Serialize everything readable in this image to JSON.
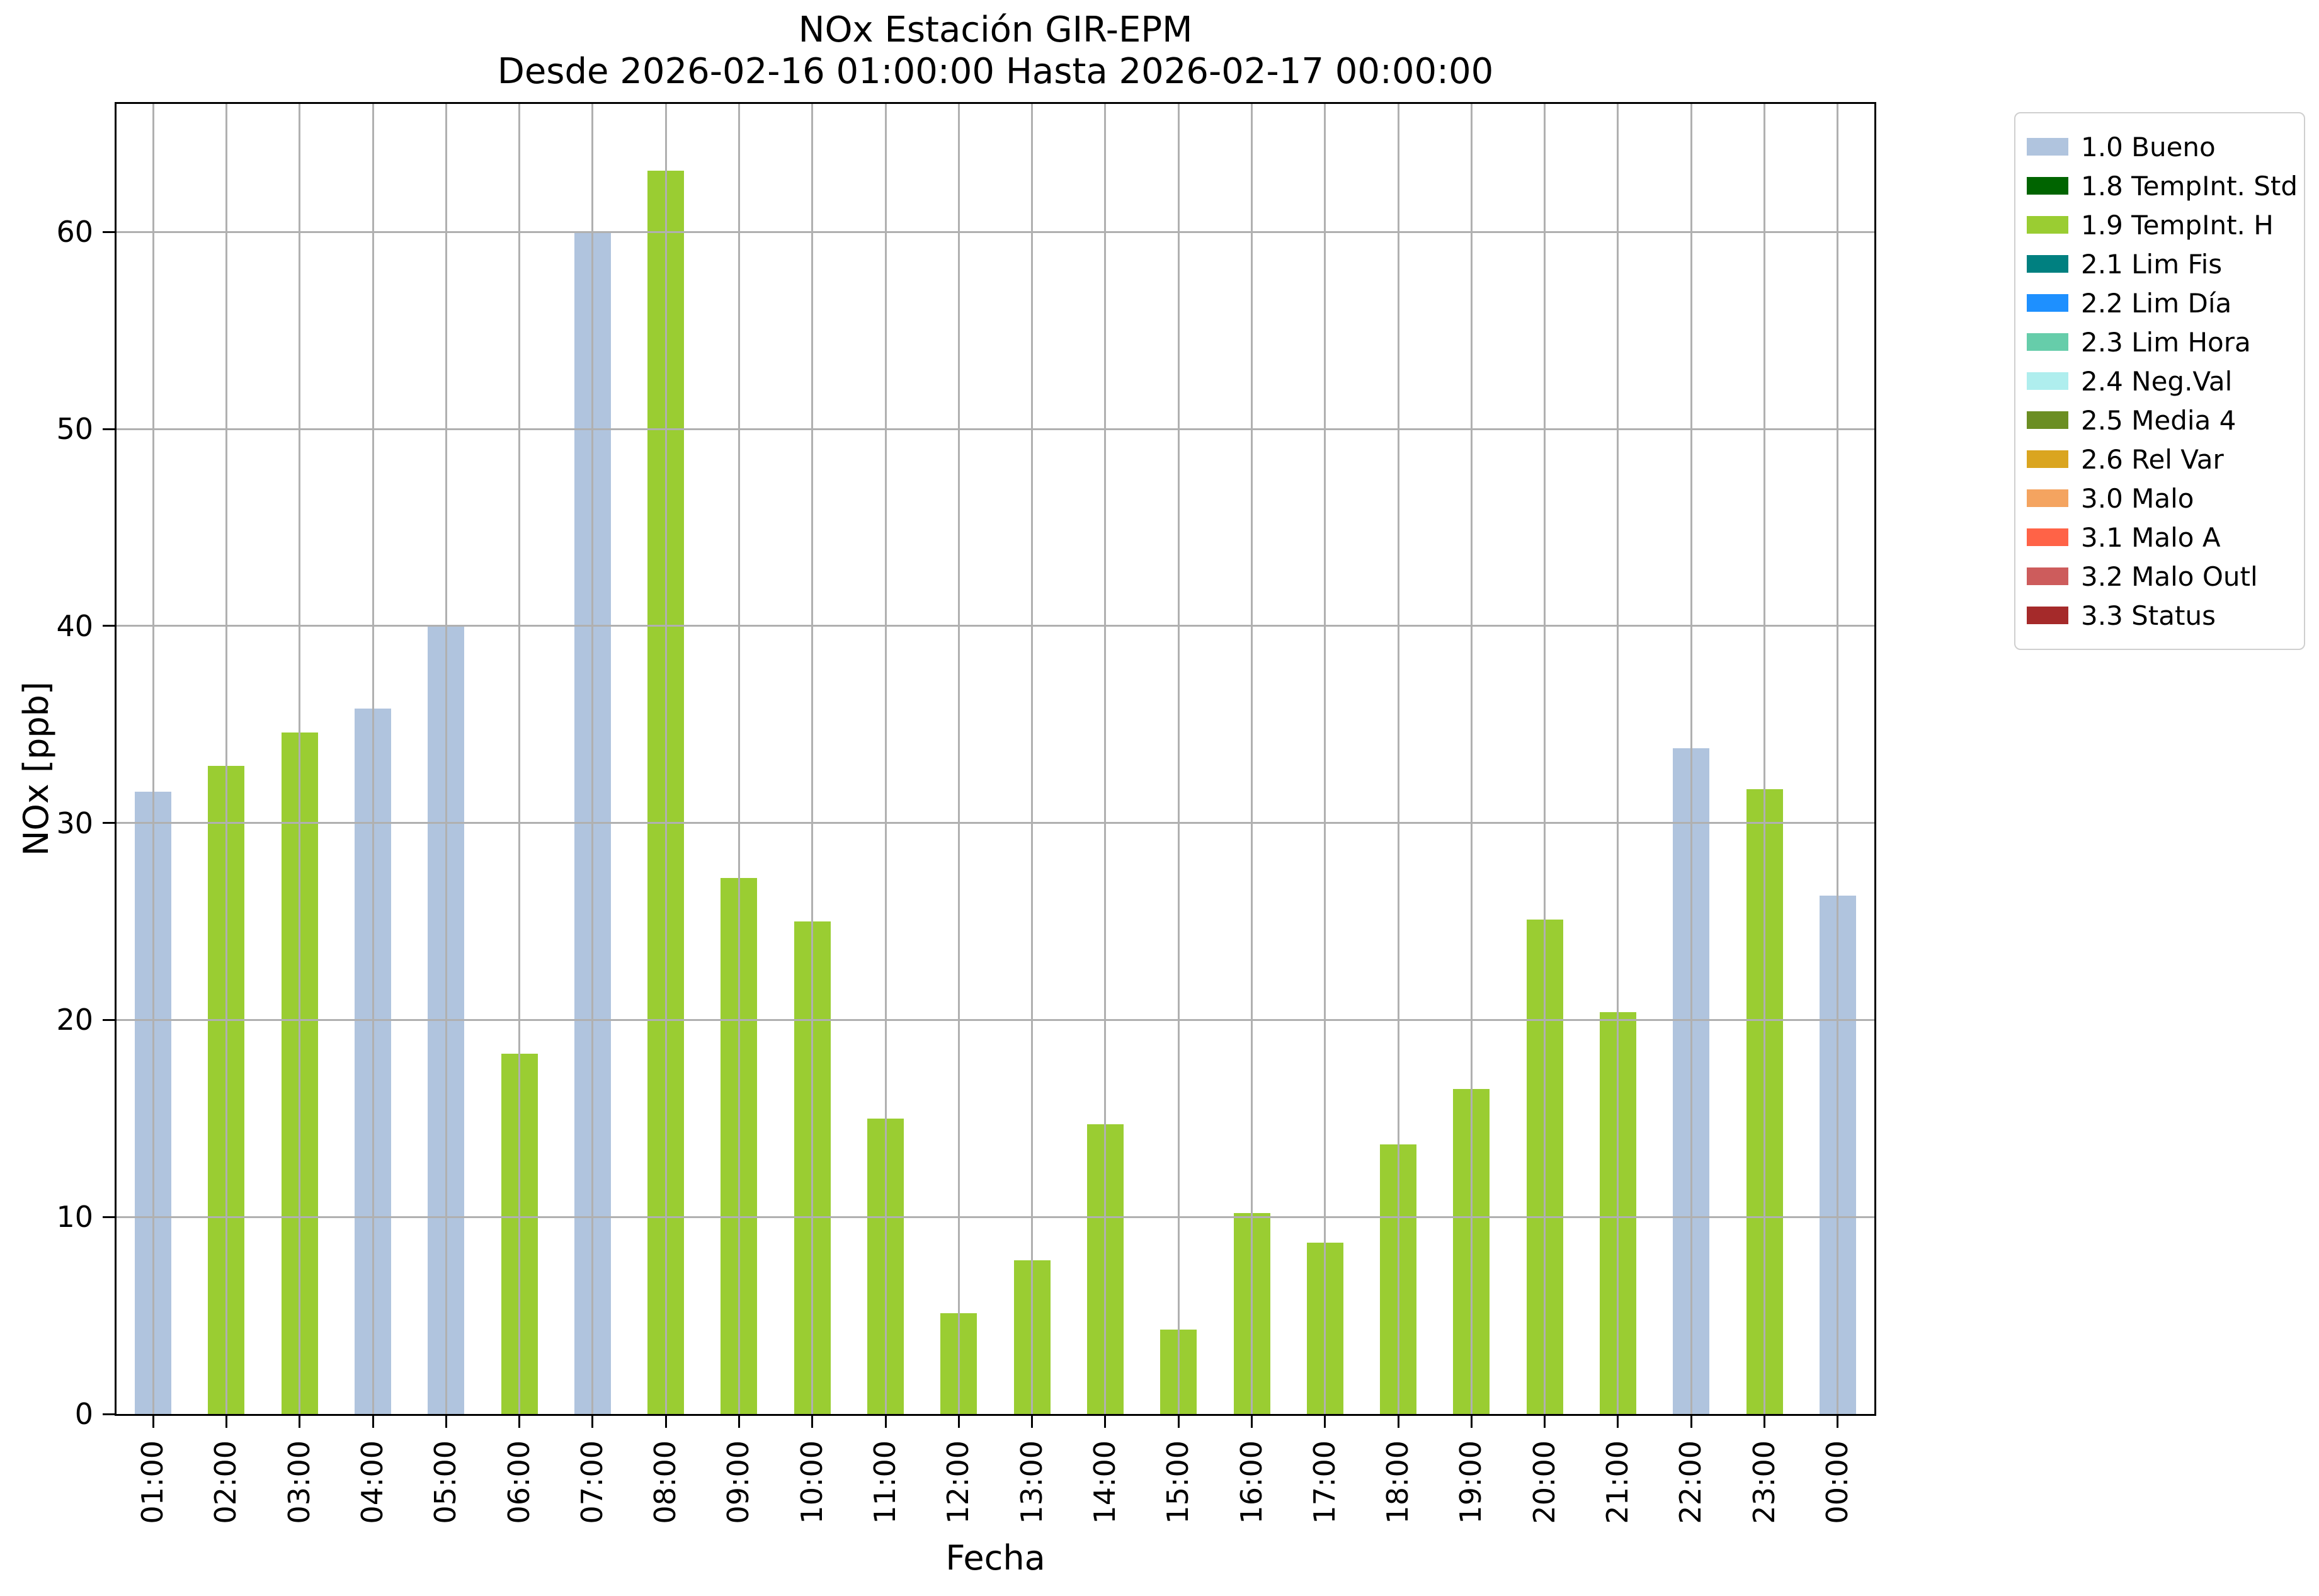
{
  "chart_data": {
    "type": "bar",
    "title": "NOx Estación GIR-EPM",
    "subtitle": "Desde 2026-02-16 01:00:00 Hasta 2026-02-17 00:00:00",
    "xlabel": "Fecha",
    "ylabel": "NOx [ppb]",
    "ylim": [
      0,
      66.5
    ],
    "yticks": [
      0,
      10,
      20,
      30,
      40,
      50,
      60
    ],
    "grid": true,
    "grid_color": "#b0b0b0",
    "bar_width_fraction": 0.5,
    "legend_position": "outside-upper-right",
    "categories": [
      "01:00",
      "02:00",
      "03:00",
      "04:00",
      "05:00",
      "06:00",
      "07:00",
      "08:00",
      "09:00",
      "10:00",
      "11:00",
      "12:00",
      "13:00",
      "14:00",
      "15:00",
      "16:00",
      "17:00",
      "18:00",
      "19:00",
      "20:00",
      "21:00",
      "22:00",
      "23:00",
      "00:00"
    ],
    "values": [
      31.6,
      32.9,
      34.6,
      35.8,
      40.0,
      18.3,
      60.0,
      63.1,
      27.2,
      25.0,
      15.0,
      5.1,
      7.8,
      14.7,
      4.3,
      10.2,
      8.7,
      13.7,
      16.5,
      25.1,
      20.4,
      33.8,
      31.7,
      26.3
    ],
    "flags": [
      "1.0 Bueno",
      "1.9 TempInt. H",
      "1.9 TempInt. H",
      "1.0 Bueno",
      "1.0 Bueno",
      "1.9 TempInt. H",
      "1.0 Bueno",
      "1.9 TempInt. H",
      "1.9 TempInt. H",
      "1.9 TempInt. H",
      "1.9 TempInt. H",
      "1.9 TempInt. H",
      "1.9 TempInt. H",
      "1.9 TempInt. H",
      "1.9 TempInt. H",
      "1.9 TempInt. H",
      "1.9 TempInt. H",
      "1.9 TempInt. H",
      "1.9 TempInt. H",
      "1.9 TempInt. H",
      "1.9 TempInt. H",
      "1.0 Bueno",
      "1.9 TempInt. H",
      "1.0 Bueno"
    ],
    "bar_colors": [
      "#b0c4de",
      "#9acd32",
      "#9acd32",
      "#b0c4de",
      "#b0c4de",
      "#9acd32",
      "#b0c4de",
      "#9acd32",
      "#9acd32",
      "#9acd32",
      "#9acd32",
      "#9acd32",
      "#9acd32",
      "#9acd32",
      "#9acd32",
      "#9acd32",
      "#9acd32",
      "#9acd32",
      "#9acd32",
      "#9acd32",
      "#9acd32",
      "#b0c4de",
      "#9acd32",
      "#b0c4de"
    ]
  },
  "legend": {
    "items": [
      {
        "label": "1.0 Bueno",
        "color": "#b0c4de"
      },
      {
        "label": "1.8 TempInt. Std",
        "color": "#006400"
      },
      {
        "label": "1.9 TempInt. H",
        "color": "#9acd32"
      },
      {
        "label": "2.1 Lim Fis",
        "color": "#008080"
      },
      {
        "label": "2.2 Lim Día",
        "color": "#1e90ff"
      },
      {
        "label": "2.3 Lim Hora",
        "color": "#66cdaa"
      },
      {
        "label": "2.4 Neg.Val",
        "color": "#afeeee"
      },
      {
        "label": "2.5 Media 4",
        "color": "#6b8e23"
      },
      {
        "label": "2.6 Rel Var",
        "color": "#daa520"
      },
      {
        "label": "3.0 Malo",
        "color": "#f4a460"
      },
      {
        "label": "3.1 Malo A",
        "color": "#ff6347"
      },
      {
        "label": "3.2 Malo Outl",
        "color": "#cd5c5c"
      },
      {
        "label": "3.3 Status",
        "color": "#a52a2a"
      }
    ]
  }
}
